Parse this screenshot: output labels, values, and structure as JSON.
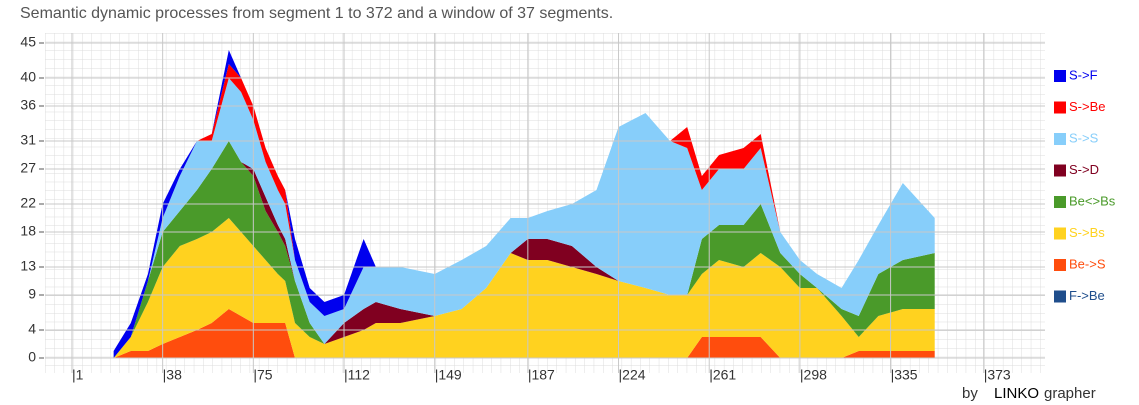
{
  "chart_data": {
    "type": "stacked_area",
    "title": "Semantic dynamic processes from segment 1 to 372 and a window of 37 segments.",
    "x": [
      18,
      25,
      32,
      38,
      45,
      52,
      58,
      65,
      70,
      75,
      80,
      85,
      88,
      92,
      98,
      104,
      112,
      120,
      125,
      135,
      149,
      160,
      170,
      180,
      187,
      195,
      205,
      215,
      224,
      235,
      245,
      252,
      258,
      265,
      275,
      282,
      290,
      298,
      305,
      315,
      322,
      330,
      340,
      353
    ],
    "series": [
      {
        "name": "Be->S",
        "color": "#ff4d0d",
        "values": [
          0,
          1,
          1,
          2,
          3,
          4,
          5,
          7,
          6,
          5,
          5,
          5,
          5,
          0,
          0,
          0,
          0,
          0,
          0,
          0,
          0,
          0,
          0,
          0,
          0,
          0,
          0,
          0,
          0,
          0,
          0,
          0,
          3,
          3,
          3,
          3,
          0,
          0,
          0,
          0,
          1,
          1,
          1,
          1
        ]
      },
      {
        "name": "S->Bs",
        "color": "#ffd21f",
        "values": [
          0,
          2,
          7,
          11,
          13,
          13,
          13,
          13,
          12,
          11,
          9,
          7,
          6,
          5,
          3,
          2,
          3,
          4,
          5,
          5,
          6,
          7,
          10,
          15,
          14,
          14,
          13,
          12,
          11,
          10,
          9,
          9,
          9,
          11,
          10,
          12,
          13,
          10,
          10,
          6,
          2,
          5,
          6,
          6
        ]
      },
      {
        "name": "Be<>Bs",
        "color": "#4a9a2a",
        "values": [
          0,
          0,
          3,
          5,
          5,
          7,
          9,
          11,
          10,
          10,
          7,
          6,
          5,
          6,
          2,
          0,
          0,
          0,
          0,
          0,
          0,
          0,
          0,
          0,
          0,
          0,
          0,
          0,
          0,
          0,
          0,
          0,
          5,
          5,
          6,
          7,
          2,
          2,
          0,
          1,
          3,
          6,
          7,
          8
        ]
      },
      {
        "name": "S->D",
        "color": "#800020",
        "values": [
          0,
          0,
          0,
          0,
          0,
          0,
          0,
          0,
          0,
          1,
          2,
          1,
          1,
          0,
          0,
          0,
          2,
          3,
          3,
          2,
          0,
          0,
          0,
          0,
          3,
          3,
          3,
          1,
          0,
          0,
          0,
          0,
          0,
          0,
          0,
          0,
          0,
          0,
          0,
          0,
          0,
          0,
          0,
          0
        ]
      },
      {
        "name": "S->S",
        "color": "#87cefa",
        "values": [
          0,
          0,
          0,
          2,
          5,
          7,
          4,
          9,
          10,
          7,
          5,
          5,
          5,
          3,
          3,
          4,
          2,
          6,
          5,
          6,
          6,
          7,
          6,
          5,
          3,
          4,
          6,
          11,
          22,
          25,
          22,
          21,
          7,
          8,
          8,
          8,
          3,
          2,
          2,
          3,
          8,
          7,
          11,
          5
        ]
      },
      {
        "name": "S->Be",
        "color": "#ff0000",
        "values": [
          0,
          0,
          0,
          0,
          0,
          0,
          1,
          2,
          2,
          2,
          2,
          2,
          2,
          0,
          0,
          0,
          0,
          0,
          0,
          0,
          0,
          0,
          0,
          0,
          0,
          0,
          0,
          0,
          0,
          0,
          0,
          3,
          2,
          2,
          3,
          2,
          0,
          0,
          0,
          0,
          0,
          0,
          0,
          0
        ]
      },
      {
        "name": "S->F",
        "color": "#0000ee",
        "values": [
          1,
          2,
          1,
          2,
          1,
          0,
          0,
          2,
          0,
          0,
          0,
          0,
          0,
          3,
          2,
          2,
          2,
          4,
          0,
          0,
          0,
          0,
          0,
          0,
          0,
          0,
          0,
          0,
          0,
          0,
          0,
          0,
          0,
          0,
          0,
          0,
          0,
          0,
          0,
          0,
          0,
          0,
          0,
          0
        ]
      },
      {
        "name": "F->Be",
        "color": "#1f4e8c",
        "values": [
          0,
          0,
          0,
          0,
          0,
          0,
          0,
          0,
          0,
          0,
          0,
          0,
          0,
          0,
          0,
          0,
          0,
          0,
          0,
          0,
          0,
          0,
          0,
          0,
          0,
          0,
          0,
          0,
          0,
          0,
          0,
          0,
          0,
          0,
          0,
          0,
          0,
          0,
          0,
          0,
          0,
          0,
          0,
          0
        ]
      }
    ],
    "legend_order": [
      6,
      5,
      4,
      3,
      2,
      1,
      0,
      7
    ],
    "xlim": [
      -10,
      398
    ],
    "ylim": [
      0,
      45
    ],
    "yticks": [
      0,
      4,
      9,
      13,
      18,
      22,
      27,
      31,
      36,
      40,
      45
    ],
    "xticks": [
      {
        "value": 1,
        "label": "|1"
      },
      {
        "value": 38,
        "label": "|38"
      },
      {
        "value": 75,
        "label": "|75"
      },
      {
        "value": 112,
        "label": "|112"
      },
      {
        "value": 149,
        "label": "|149"
      },
      {
        "value": 187,
        "label": "|187"
      },
      {
        "value": 224,
        "label": "|224"
      },
      {
        "value": 261,
        "label": "|261"
      },
      {
        "value": 298,
        "label": "|298"
      },
      {
        "value": 335,
        "label": "|335"
      },
      {
        "value": 373,
        "label": "|373"
      }
    ],
    "grid": true,
    "legend": "right",
    "credit": {
      "by": "by",
      "brand": "LINKO",
      "suffix": "grapher"
    }
  }
}
